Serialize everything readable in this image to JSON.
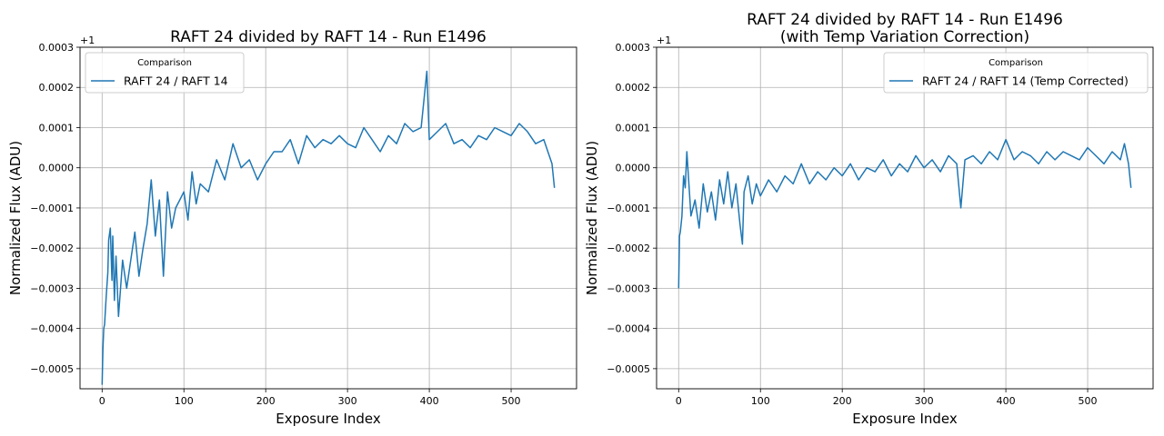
{
  "chart_data": [
    {
      "type": "line",
      "title": [
        "RAFT 24 divided by RAFT 14 - Run E1496"
      ],
      "xlabel": "Exposure Index",
      "ylabel": "Normalized Flux (ADU)",
      "y_offset_label": "+1",
      "xlim": [
        -27,
        580
      ],
      "ylim": [
        -0.00055,
        0.0003
      ],
      "xticks": [
        0,
        100,
        200,
        300,
        400,
        500
      ],
      "xtick_labels": [
        "0",
        "100",
        "200",
        "300",
        "400",
        "500"
      ],
      "yticks": [
        -0.0005,
        -0.0004,
        -0.0003,
        -0.0002,
        -0.0001,
        0.0,
        0.0001,
        0.0002,
        0.0003
      ],
      "ytick_labels": [
        "−0.0005",
        "−0.0004",
        "−0.0003",
        "−0.0002",
        "−0.0001",
        "0.0000",
        "0.0001",
        "0.0002",
        "0.0003"
      ],
      "grid": true,
      "legend": {
        "title": "Comparison",
        "placement": "upper-left"
      },
      "series": [
        {
          "name": "RAFT 24 / RAFT 14",
          "color": "#1f77b4",
          "x": [
            0,
            1,
            2,
            3,
            5,
            7,
            8,
            10,
            12,
            13,
            15,
            17,
            20,
            25,
            30,
            35,
            40,
            45,
            50,
            55,
            60,
            65,
            70,
            75,
            80,
            85,
            90,
            95,
            100,
            105,
            110,
            115,
            120,
            130,
            140,
            150,
            160,
            170,
            180,
            190,
            200,
            210,
            220,
            230,
            240,
            250,
            260,
            270,
            280,
            290,
            300,
            310,
            320,
            330,
            340,
            350,
            360,
            370,
            380,
            390,
            397,
            400,
            410,
            420,
            430,
            440,
            450,
            460,
            470,
            480,
            490,
            500,
            510,
            520,
            530,
            540,
            545,
            550,
            553
          ],
          "values": [
            -0.00054,
            -0.00045,
            -0.0004,
            -0.00039,
            -0.00032,
            -0.00026,
            -0.00018,
            -0.00015,
            -0.00028,
            -0.00017,
            -0.00033,
            -0.00022,
            -0.00037,
            -0.00023,
            -0.0003,
            -0.00023,
            -0.00016,
            -0.00027,
            -0.0002,
            -0.00014,
            -3e-05,
            -0.00017,
            -8e-05,
            -0.00027,
            -6e-05,
            -0.00015,
            -0.0001,
            -8e-05,
            -6e-05,
            -0.00013,
            -1e-05,
            -9e-05,
            -4e-05,
            -6e-05,
            2e-05,
            -3e-05,
            6e-05,
            0.0,
            2e-05,
            -3e-05,
            1e-05,
            4e-05,
            4e-05,
            7e-05,
            1e-05,
            8e-05,
            5e-05,
            7e-05,
            6e-05,
            8e-05,
            6e-05,
            5e-05,
            0.0001,
            7e-05,
            4e-05,
            8e-05,
            6e-05,
            0.00011,
            9e-05,
            0.0001,
            0.00024,
            7e-05,
            9e-05,
            0.00011,
            6e-05,
            7e-05,
            5e-05,
            8e-05,
            7e-05,
            0.0001,
            9e-05,
            8e-05,
            0.00011,
            9e-05,
            6e-05,
            7e-05,
            4e-05,
            1e-05,
            -5e-05
          ]
        }
      ]
    },
    {
      "type": "line",
      "title": [
        "RAFT 24 divided by RAFT 14 - Run E1496",
        "(with Temp Variation Correction)"
      ],
      "xlabel": "Exposure Index",
      "ylabel": "Normalized Flux (ADU)",
      "y_offset_label": "+1",
      "xlim": [
        -27,
        580
      ],
      "ylim": [
        -0.00055,
        0.0003
      ],
      "xticks": [
        0,
        100,
        200,
        300,
        400,
        500
      ],
      "xtick_labels": [
        "0",
        "100",
        "200",
        "300",
        "400",
        "500"
      ],
      "yticks": [
        -0.0005,
        -0.0004,
        -0.0003,
        -0.0002,
        -0.0001,
        0.0,
        0.0001,
        0.0002,
        0.0003
      ],
      "ytick_labels": [
        "−0.0005",
        "−0.0004",
        "−0.0003",
        "−0.0002",
        "−0.0001",
        "0.0000",
        "0.0001",
        "0.0002",
        "0.0003"
      ],
      "grid": true,
      "legend": {
        "title": "Comparison",
        "placement": "upper-right"
      },
      "series": [
        {
          "name": "RAFT 24 / RAFT 14 (Temp Corrected)",
          "color": "#1f77b4",
          "x": [
            0,
            1,
            2,
            4,
            6,
            8,
            10,
            15,
            20,
            25,
            30,
            35,
            40,
            45,
            50,
            55,
            60,
            65,
            70,
            75,
            78,
            80,
            85,
            90,
            95,
            100,
            110,
            120,
            130,
            140,
            150,
            160,
            170,
            180,
            190,
            200,
            210,
            220,
            230,
            240,
            250,
            260,
            270,
            280,
            290,
            300,
            310,
            320,
            330,
            340,
            345,
            350,
            360,
            370,
            380,
            390,
            400,
            410,
            420,
            430,
            440,
            450,
            460,
            470,
            480,
            490,
            500,
            510,
            520,
            530,
            540,
            545,
            550,
            553
          ],
          "values": [
            -0.0003,
            -0.00017,
            -0.00016,
            -0.00012,
            -2e-05,
            -5e-05,
            4e-05,
            -0.00012,
            -8e-05,
            -0.00015,
            -4e-05,
            -0.00011,
            -6e-05,
            -0.00013,
            -3e-05,
            -9e-05,
            -1e-05,
            -0.0001,
            -4e-05,
            -0.00014,
            -0.00019,
            -6e-05,
            -2e-05,
            -9e-05,
            -4e-05,
            -7e-05,
            -3e-05,
            -6e-05,
            -2e-05,
            -4e-05,
            1e-05,
            -4e-05,
            -1e-05,
            -3e-05,
            0.0,
            -2e-05,
            1e-05,
            -3e-05,
            0.0,
            -1e-05,
            2e-05,
            -2e-05,
            1e-05,
            -1e-05,
            3e-05,
            0.0,
            2e-05,
            -1e-05,
            3e-05,
            1e-05,
            -0.0001,
            2e-05,
            3e-05,
            1e-05,
            4e-05,
            2e-05,
            7e-05,
            2e-05,
            4e-05,
            3e-05,
            1e-05,
            4e-05,
            2e-05,
            4e-05,
            3e-05,
            2e-05,
            5e-05,
            3e-05,
            1e-05,
            4e-05,
            2e-05,
            6e-05,
            1e-05,
            -5e-05
          ]
        }
      ]
    }
  ]
}
